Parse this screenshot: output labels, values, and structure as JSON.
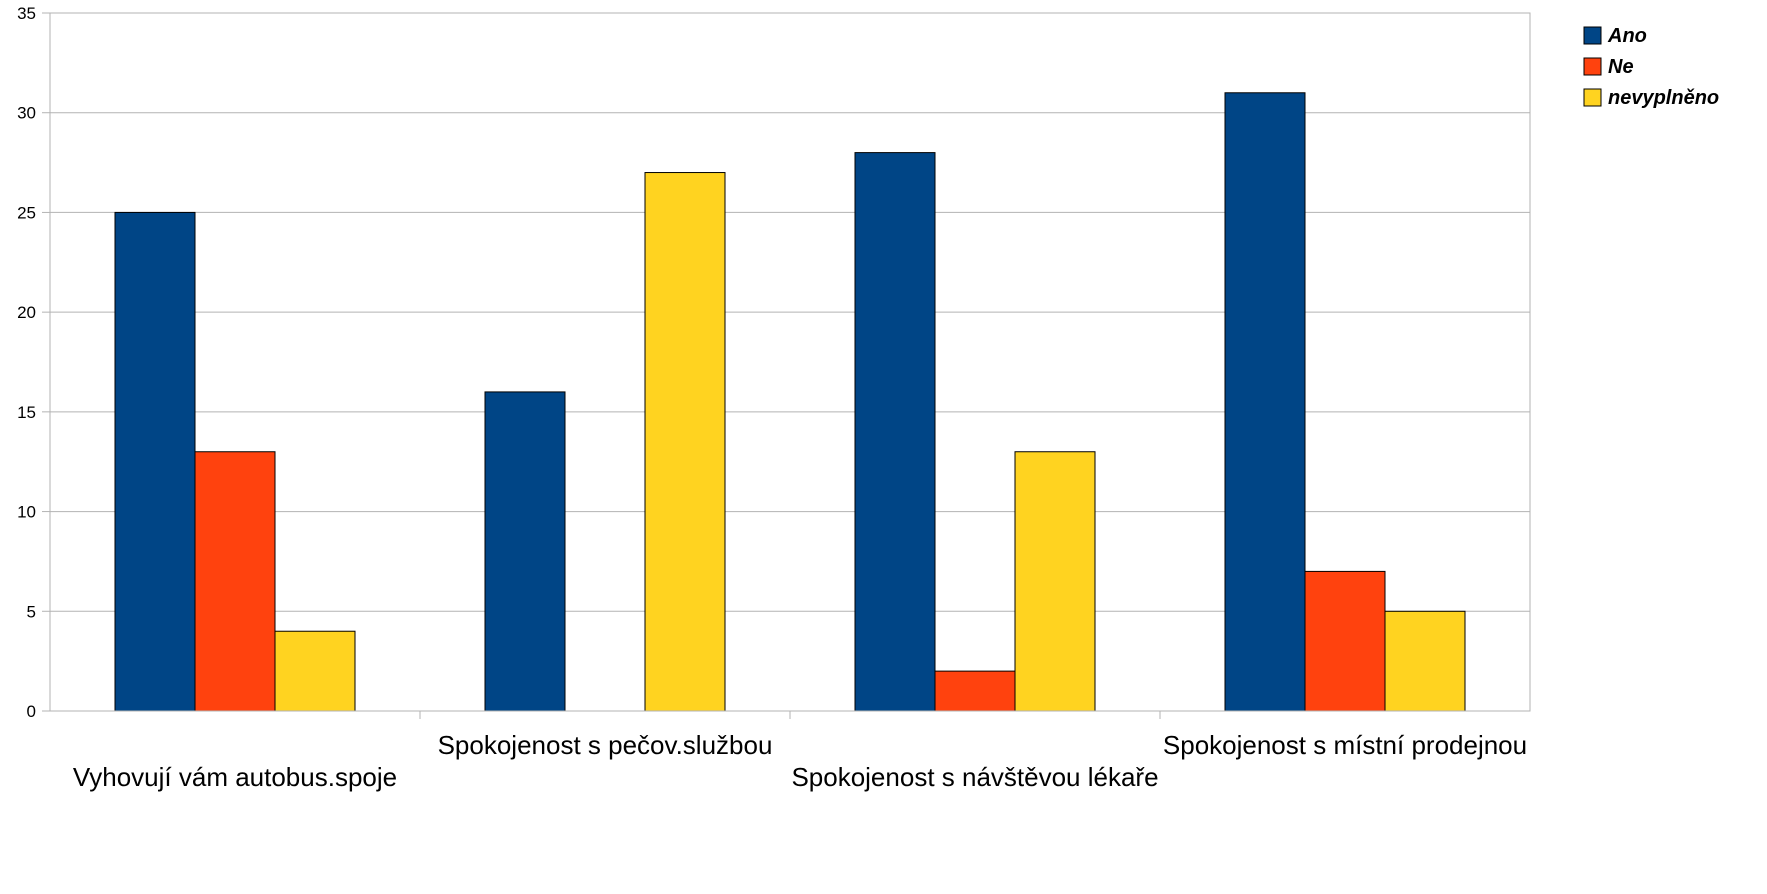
{
  "chart_data": {
    "type": "bar",
    "categories": [
      "Vyhovují vám autobus.spoje",
      "Spokojenost s pečov.službou",
      "Spokojenost s návštěvou lékaře",
      "Spokojenost s místní prodejnou"
    ],
    "series": [
      {
        "name": "Ano",
        "color": "#004586",
        "values": [
          25,
          16,
          28,
          31
        ]
      },
      {
        "name": "Ne",
        "color": "#ff420e",
        "values": [
          13,
          0,
          2,
          7
        ]
      },
      {
        "name": "nevyplněno",
        "color": "#ffd320",
        "values": [
          4,
          27,
          13,
          5
        ]
      }
    ],
    "ylim": [
      0,
      35
    ],
    "yticks": [
      0,
      5,
      10,
      15,
      20,
      25,
      30,
      35
    ],
    "grid": true,
    "legend_position": "top-right",
    "title": "",
    "xlabel": "",
    "ylabel": ""
  }
}
